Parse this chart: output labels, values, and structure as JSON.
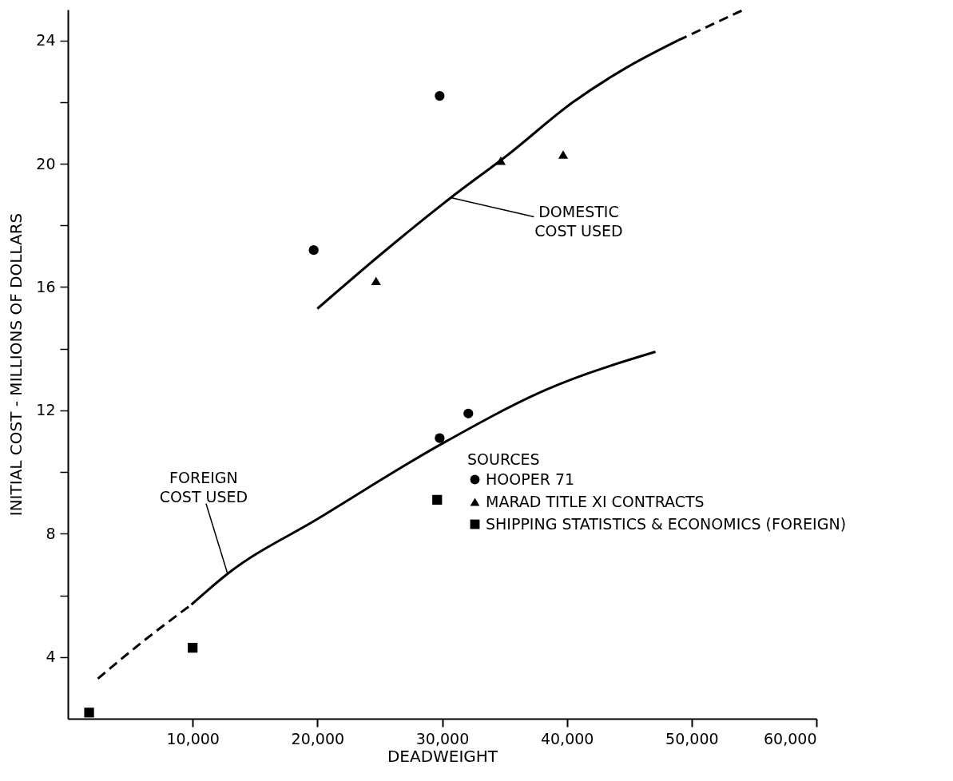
{
  "chart_data": {
    "type": "scatter",
    "xlabel": "DEADWEIGHT",
    "ylabel": "INITIAL COST - MILLIONS OF DOLLARS",
    "legend_title": "SOURCES",
    "legend": "bottom right",
    "grid": false,
    "xlim": [
      0,
      60000
    ],
    "ylim": [
      2,
      25
    ],
    "xticks": [
      {
        "value": 10000,
        "label": "10,000"
      },
      {
        "value": 20000,
        "label": "20,000"
      },
      {
        "value": 30000,
        "label": "30,000"
      },
      {
        "value": 40000,
        "label": "40,000"
      },
      {
        "value": 50000,
        "label": "50,000"
      },
      {
        "value": 60000,
        "label": "60,000"
      }
    ],
    "yticks": [
      4,
      {
        "value": 6,
        "label": null
      },
      8,
      {
        "value": 10,
        "label": null
      },
      12,
      {
        "value": 14,
        "label": null
      },
      16,
      {
        "value": 18,
        "label": null
      },
      20,
      {
        "value": 22,
        "label": null
      },
      24
    ],
    "series": [
      {
        "name": "HOOPER 71",
        "marker": "circle",
        "color": "#000000",
        "x": [
          19700,
          29800,
          29800,
          32100
        ],
        "values": [
          17.2,
          22.2,
          11.1,
          11.9
        ]
      },
      {
        "name": "MARAD TITLE XI CONTRACTS",
        "marker": "triangle",
        "color": "#000000",
        "x": [
          24700,
          34700,
          39700
        ],
        "values": [
          16.2,
          20.1,
          20.3
        ]
      },
      {
        "name": "SHIPPING STATISTICS & ECONOMICS (FOREIGN)",
        "marker": "square",
        "color": "#000000",
        "x": [
          1700,
          10000,
          29600
        ],
        "values": [
          2.2,
          4.3,
          9.1
        ]
      },
      {
        "type": "line",
        "line_style": "solid",
        "marker": "none",
        "color": "#000000",
        "x": [
          20000,
          25200,
          30700,
          35300,
          40500,
          44700,
          48900
        ],
        "values": [
          15.3,
          17.1,
          18.9,
          20.3,
          22.0,
          23.1,
          24.0
        ]
      },
      {
        "type": "line",
        "line_style": "dashed",
        "marker": "none",
        "color": "#000000",
        "x": [
          48900,
          54200
        ],
        "values": [
          24.0,
          25.0
        ]
      },
      {
        "type": "line",
        "line_style": "dashed",
        "marker": "none",
        "color": "#000000",
        "x": [
          2400,
          6000,
          9900
        ],
        "values": [
          3.3,
          4.5,
          5.7
        ]
      },
      {
        "type": "line",
        "line_style": "solid",
        "marker": "none",
        "color": "#000000",
        "x": [
          9900,
          12800,
          20100,
          29900,
          38500,
          47100
        ],
        "values": [
          5.7,
          6.7,
          8.5,
          10.9,
          12.7,
          13.9
        ]
      }
    ],
    "annotations": [
      {
        "text": "DOMESTIC\nCOST USED",
        "x": 30700,
        "y": 18.9
      },
      {
        "text": "FOREIGN\nCOST USED",
        "x": 12800,
        "y": 6.7
      }
    ]
  }
}
